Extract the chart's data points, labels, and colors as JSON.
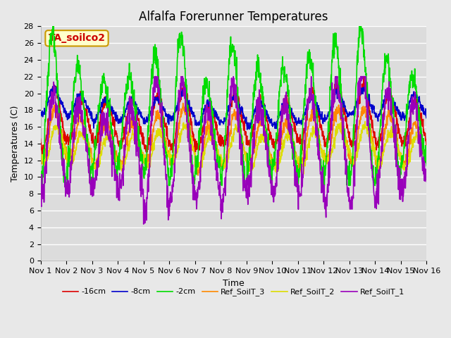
{
  "title": "Alfalfa Forerunner Temperatures",
  "xlabel": "Time",
  "ylabel": "Temperatures (C)",
  "ylim": [
    0,
    28
  ],
  "xlim": [
    0,
    15
  ],
  "xtick_labels": [
    "Nov 1",
    "Nov 2",
    "Nov 3",
    "Nov 4",
    "Nov 5",
    "Nov 6",
    "Nov 7",
    "Nov 8",
    "Nov 9",
    "Nov 10",
    "Nov 11",
    "Nov 12",
    "Nov 13",
    "Nov 14",
    "Nov 15",
    "Nov 16"
  ],
  "xtick_positions": [
    0,
    1,
    2,
    3,
    4,
    5,
    6,
    7,
    8,
    9,
    10,
    11,
    12,
    13,
    14,
    15
  ],
  "ytick_positions": [
    0,
    2,
    4,
    6,
    8,
    10,
    12,
    14,
    16,
    18,
    20,
    22,
    24,
    26,
    28
  ],
  "lines": {
    "-16cm": {
      "color": "#DD0000",
      "lw": 1.2
    },
    "-8cm": {
      "color": "#0000CC",
      "lw": 1.2
    },
    "-2cm": {
      "color": "#00DD00",
      "lw": 1.2
    },
    "Ref_SoilT_3": {
      "color": "#FF8800",
      "lw": 1.2
    },
    "Ref_SoilT_2": {
      "color": "#DDDD00",
      "lw": 1.2
    },
    "Ref_SoilT_1": {
      "color": "#9900BB",
      "lw": 1.2
    }
  },
  "annotation_text": "TA_soilco2",
  "annotation_color": "#CC0000",
  "annotation_bg": "#FFFFCC",
  "annotation_border": "#CC9900",
  "background_color": "#E8E8E8",
  "plot_bg_color": "#DCDCDC",
  "grid_color": "#FFFFFF",
  "title_fontsize": 12,
  "label_fontsize": 9,
  "tick_fontsize": 8
}
